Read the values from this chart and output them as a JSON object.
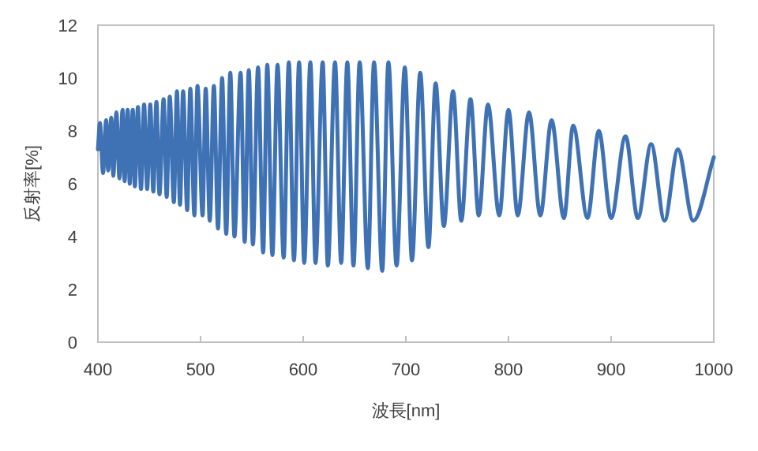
{
  "chart_data": {
    "type": "line",
    "xlabel": "波長[nm]",
    "ylabel": "反射率[%]",
    "xlim": [
      400,
      1000
    ],
    "ylim": [
      0,
      12
    ],
    "xticks": [
      400,
      500,
      600,
      700,
      800,
      900,
      1000
    ],
    "yticks": [
      0,
      2,
      4,
      6,
      8,
      10,
      12
    ],
    "line_style": "solid",
    "series": [
      {
        "color": "#3f72b5",
        "x": [
          400,
          402,
          405,
          408,
          410,
          413,
          415,
          418,
          421,
          424,
          426,
          429,
          431,
          434,
          436,
          439,
          442,
          445,
          448,
          451,
          454,
          457,
          460,
          464,
          467,
          470,
          474,
          477,
          480,
          483,
          487,
          490,
          494,
          497,
          502,
          505,
          509,
          513,
          517,
          521,
          525,
          529,
          533,
          539,
          543,
          547,
          551,
          556,
          561,
          565,
          570,
          575,
          581,
          586,
          591,
          596,
          601,
          607,
          612,
          619,
          624,
          631,
          637,
          643,
          649,
          655,
          663,
          669,
          677,
          683,
          691,
          699,
          706,
          714,
          722,
          729,
          737,
          746,
          754,
          763,
          771,
          780,
          791,
          800,
          809,
          820,
          831,
          842,
          854,
          863,
          877,
          888,
          900,
          914,
          926,
          939,
          952,
          965,
          980,
          1000
        ],
        "values": [
          7.3,
          8.3,
          6.4,
          8.4,
          6.5,
          8.5,
          6.3,
          8.7,
          6.2,
          8.8,
          6.1,
          8.8,
          6.0,
          8.8,
          5.9,
          8.9,
          5.8,
          9.0,
          5.8,
          9.0,
          5.7,
          9.1,
          5.6,
          9.2,
          5.5,
          9.3,
          5.3,
          9.5,
          5.2,
          9.5,
          5.0,
          9.6,
          4.8,
          9.7,
          4.8,
          9.6,
          4.6,
          9.7,
          4.3,
          10.0,
          4.1,
          10.2,
          4.0,
          10.2,
          3.8,
          10.3,
          3.7,
          10.4,
          3.4,
          10.5,
          3.3,
          10.5,
          3.2,
          10.6,
          3.1,
          10.6,
          3.0,
          10.6,
          3.0,
          10.6,
          2.9,
          10.6,
          3.0,
          10.6,
          2.9,
          10.6,
          2.8,
          10.6,
          2.7,
          10.6,
          2.9,
          10.4,
          3.1,
          10.2,
          3.6,
          9.8,
          4.4,
          9.5,
          4.6,
          9.2,
          4.8,
          9.0,
          4.8,
          8.8,
          4.8,
          8.7,
          4.8,
          8.4,
          4.7,
          8.2,
          4.7,
          8.0,
          4.7,
          7.8,
          4.7,
          7.5,
          4.6,
          7.3,
          4.6,
          7.0
        ]
      }
    ]
  }
}
